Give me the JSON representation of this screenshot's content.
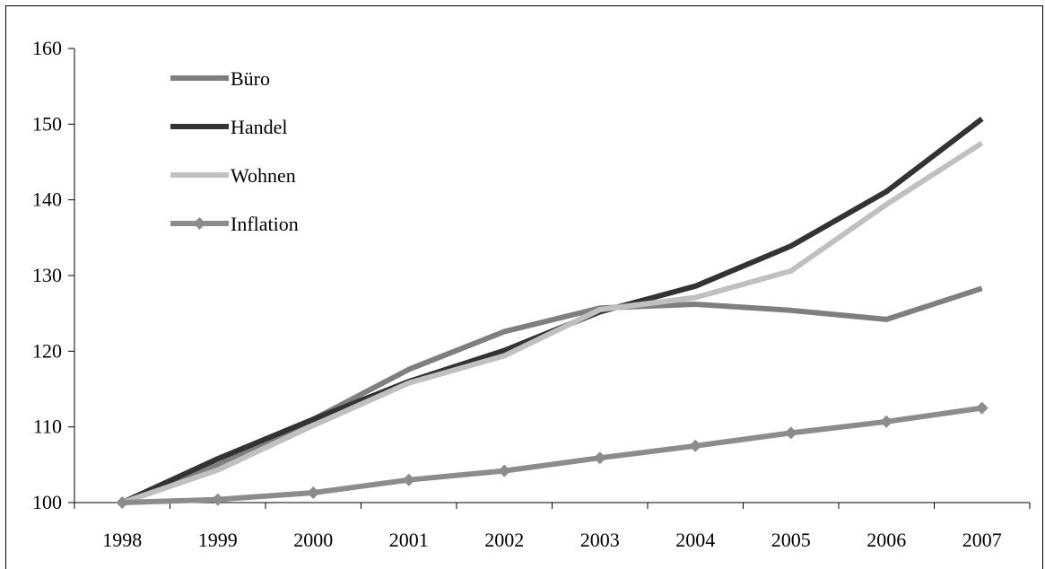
{
  "chart_data": {
    "type": "line",
    "title": "",
    "xlabel": "",
    "ylabel": "",
    "x": [
      "1998",
      "1999",
      "2000",
      "2001",
      "2002",
      "2003",
      "2004",
      "2005",
      "2006",
      "2007"
    ],
    "ylim": [
      100,
      160
    ],
    "yticks": [
      100,
      110,
      120,
      130,
      140,
      150,
      160
    ],
    "grid": false,
    "legend_position": "top-left",
    "series": [
      {
        "name": "Büro",
        "color": "#7f7f7f",
        "marker": "none",
        "values": [
          100,
          105.0,
          111.0,
          117.6,
          122.6,
          125.7,
          126.2,
          125.4,
          124.2,
          128.3
        ]
      },
      {
        "name": "Handel",
        "color": "#333333",
        "marker": "none",
        "values": [
          100,
          105.8,
          111.0,
          116.0,
          120.1,
          125.2,
          128.6,
          133.9,
          141.1,
          150.7
        ]
      },
      {
        "name": "Wohnen",
        "color": "#c0c0c0",
        "marker": "none",
        "values": [
          100,
          104.3,
          110.2,
          115.8,
          119.4,
          125.5,
          127.1,
          130.6,
          139.4,
          147.5
        ]
      },
      {
        "name": "Inflation",
        "color": "#8c8c8c",
        "marker": "diamond",
        "values": [
          100,
          100.4,
          101.3,
          103.0,
          104.2,
          105.9,
          107.5,
          109.2,
          110.7,
          112.5
        ]
      }
    ]
  }
}
